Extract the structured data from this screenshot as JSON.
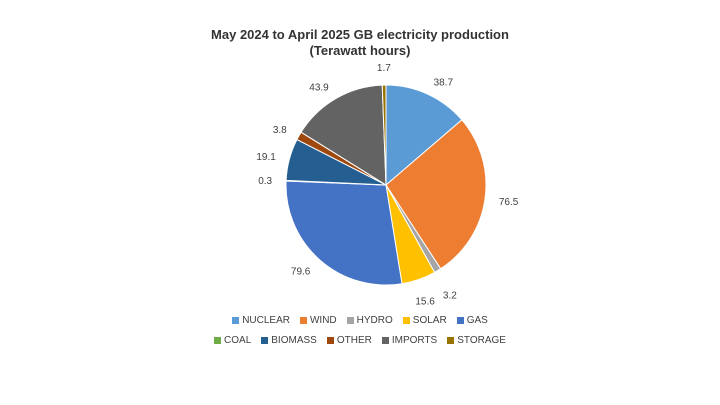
{
  "chart_data": {
    "type": "pie",
    "title_line1": "May 2024 to April 2025 GB electricity production",
    "title_line2": "(Terawatt hours)",
    "slices": [
      {
        "label": "NUCLEAR",
        "value": 38.7,
        "value_label": "38.7",
        "color": "#5B9BD5"
      },
      {
        "label": "WIND",
        "value": 76.5,
        "value_label": "76.5",
        "color": "#ED7D31"
      },
      {
        "label": "HYDRO",
        "value": 3.2,
        "value_label": "3.2",
        "color": "#A5A5A5"
      },
      {
        "label": "SOLAR",
        "value": 15.6,
        "value_label": "15.6",
        "color": "#FFC000"
      },
      {
        "label": "GAS",
        "value": 79.6,
        "value_label": "79.6",
        "color": "#4472C4"
      },
      {
        "label": "COAL",
        "value": 0.3,
        "value_label": "0.3",
        "color": "#70AD47"
      },
      {
        "label": "BIOMASS",
        "value": 19.1,
        "value_label": "19.1",
        "color": "#255E91"
      },
      {
        "label": "OTHER",
        "value": 3.8,
        "value_label": "3.8",
        "color": "#9E480E"
      },
      {
        "label": "IMPORTS",
        "value": 43.9,
        "value_label": "43.9",
        "color": "#636363"
      },
      {
        "label": "STORAGE",
        "value": 1.7,
        "value_label": "1.7",
        "color": "#997300"
      }
    ],
    "legend_placement": "bottom"
  }
}
